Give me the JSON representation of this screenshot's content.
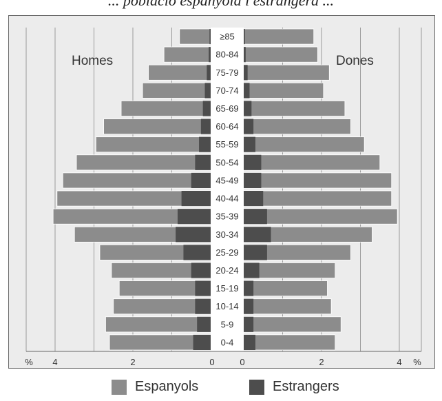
{
  "header": {
    "title_fragment": "... població espanyola i estrangera ..."
  },
  "chart_data": {
    "type": "bar",
    "subtype": "population-pyramid",
    "left_label": "Homes",
    "right_label": "Dones",
    "unit_label": "%",
    "categories": [
      "0-4",
      "5-9",
      "10-14",
      "15-19",
      "20-24",
      "25-29",
      "30-34",
      "35-39",
      "40-44",
      "45-49",
      "50-54",
      "55-59",
      "60-64",
      "65-69",
      "70-74",
      "75-79",
      "80-84",
      "≥85"
    ],
    "series": [
      {
        "name": "Espanyols",
        "side": "Homes",
        "values": [
          2.6,
          2.7,
          2.5,
          2.35,
          2.55,
          2.85,
          3.5,
          4.05,
          3.95,
          3.8,
          3.45,
          2.95,
          2.75,
          2.3,
          1.75,
          1.6,
          1.2,
          0.8
        ]
      },
      {
        "name": "Estrangers",
        "side": "Homes",
        "values": [
          0.45,
          0.35,
          0.4,
          0.4,
          0.5,
          0.7,
          0.9,
          0.85,
          0.75,
          0.5,
          0.4,
          0.3,
          0.25,
          0.2,
          0.15,
          0.1,
          0.05,
          0.03
        ]
      },
      {
        "name": "Espanyols",
        "side": "Dones",
        "values": [
          2.35,
          2.5,
          2.25,
          2.15,
          2.35,
          2.75,
          3.3,
          3.95,
          3.8,
          3.8,
          3.5,
          3.1,
          2.75,
          2.6,
          2.05,
          2.2,
          1.9,
          1.8
        ]
      },
      {
        "name": "Estrangers",
        "side": "Dones",
        "values": [
          0.3,
          0.25,
          0.25,
          0.25,
          0.4,
          0.6,
          0.7,
          0.6,
          0.5,
          0.45,
          0.45,
          0.3,
          0.25,
          0.2,
          0.15,
          0.1,
          0.05,
          0.03
        ]
      }
    ],
    "xlim": [
      0,
      4.5
    ],
    "xticks": [
      4,
      2,
      0
    ],
    "grid": true,
    "colors": {
      "Espanyols": "#8c8c8c",
      "Estrangers": "#4d4d4d",
      "background": "#ececec"
    },
    "legend": [
      "Espanyols",
      "Estrangers"
    ],
    "legend_position": "bottom"
  }
}
